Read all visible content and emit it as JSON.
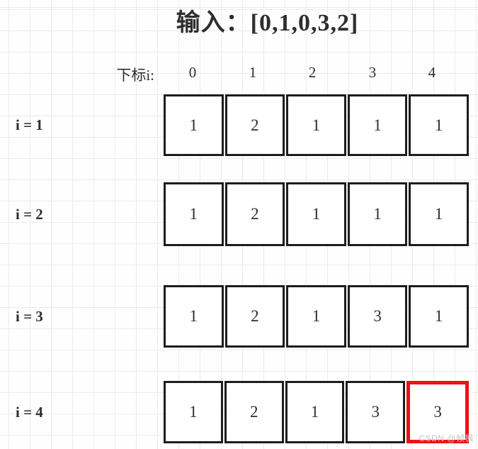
{
  "title": "输入：[0,1,0,3,2]",
  "header": {
    "label": "下标i:",
    "indices": [
      "0",
      "1",
      "2",
      "3",
      "4"
    ]
  },
  "rows": [
    {
      "label": "i = 1",
      "values": [
        "1",
        "2",
        "1",
        "1",
        "1"
      ],
      "highlighted_index": null
    },
    {
      "label": "i = 2",
      "values": [
        "1",
        "2",
        "1",
        "1",
        "1"
      ],
      "highlighted_index": null
    },
    {
      "label": "i = 3",
      "values": [
        "1",
        "2",
        "1",
        "3",
        "1"
      ],
      "highlighted_index": null
    },
    {
      "label": "i = 4",
      "values": [
        "1",
        "2",
        "1",
        "3",
        "3"
      ],
      "highlighted_index": 4
    }
  ],
  "watermark": "CSDN @帧枫",
  "colors": {
    "cell_border": "#1d1d1f",
    "highlight_border": "#ee1111",
    "grid_line": "#ececec",
    "text": "#2e2e2e",
    "watermark": "#ccbfbf"
  }
}
